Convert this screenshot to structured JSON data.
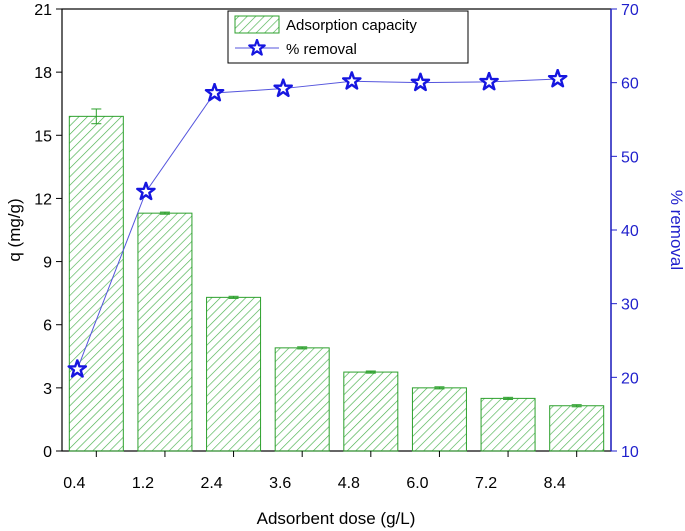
{
  "chart_data": {
    "type": "bar+line",
    "xlabel": "Adsorbent dose (g/L)",
    "categories": [
      "0.4",
      "1.2",
      "2.4",
      "3.6",
      "4.8",
      "6.0",
      "7.2",
      "8.4"
    ],
    "left_axis": {
      "label": "q (mg/g)",
      "ylim": [
        0,
        21
      ],
      "ticks": [
        0,
        3,
        6,
        9,
        12,
        15,
        18,
        21
      ]
    },
    "right_axis": {
      "label": "% removal",
      "ylim": [
        10,
        70
      ],
      "ticks": [
        10,
        20,
        30,
        40,
        50,
        60,
        70
      ]
    },
    "series": [
      {
        "name": "Adsorption capacity",
        "type": "bar",
        "axis": "left",
        "values": [
          15.9,
          11.3,
          7.3,
          4.9,
          3.75,
          3.0,
          2.5,
          2.15
        ],
        "errors": [
          0.35,
          0.05,
          0.05,
          0.05,
          0.05,
          0.05,
          0.05,
          0.05
        ],
        "color": "#2ca02c",
        "hatch": "diagonal"
      },
      {
        "name": "% removal",
        "type": "line",
        "axis": "right",
        "marker": "star",
        "values": [
          21.1,
          45.2,
          58.6,
          59.2,
          60.2,
          60.0,
          60.1,
          60.5
        ],
        "color": "#1f1fcc"
      }
    ],
    "legend": {
      "position": "top-center"
    }
  }
}
